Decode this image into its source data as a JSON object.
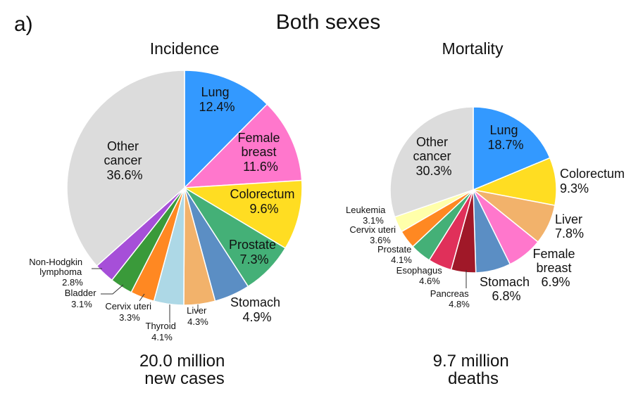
{
  "panel_label": "a)",
  "title": "Both sexes",
  "chart_data": [
    {
      "type": "pie",
      "title": "Incidence",
      "total_line1": "20.0 million",
      "total_line2": "new cases",
      "start": "12 o'clock",
      "direction": "clockwise",
      "slices": [
        {
          "label": "Lung",
          "value": 12.4,
          "text": "12.4%",
          "color": "#3399ff"
        },
        {
          "label": "Female breast",
          "value": 11.6,
          "text": "11.6%",
          "color": "#ff77cc"
        },
        {
          "label": "Colorectum",
          "value": 9.6,
          "text": "9.6%",
          "color": "#ffdd22"
        },
        {
          "label": "Prostate",
          "value": 7.3,
          "text": "7.3%",
          "color": "#44b077"
        },
        {
          "label": "Stomach",
          "value": 4.9,
          "text": "4.9%",
          "color": "#5b8ec4"
        },
        {
          "label": "Liver",
          "value": 4.3,
          "text": "4.3%",
          "color": "#f2b26b"
        },
        {
          "label": "Thyroid",
          "value": 4.1,
          "text": "4.1%",
          "color": "#add8e6"
        },
        {
          "label": "Cervix uteri",
          "value": 3.3,
          "text": "3.3%",
          "color": "#ff8822"
        },
        {
          "label": "Bladder",
          "value": 3.1,
          "text": "3.1%",
          "color": "#3a9a3a"
        },
        {
          "label": "Non-Hodgkin lymphoma",
          "value": 2.8,
          "text": "2.8%",
          "color": "#a64fd8"
        },
        {
          "label": "Other cancer",
          "value": 36.6,
          "text": "36.6%",
          "color": "#dcdcdc"
        }
      ]
    },
    {
      "type": "pie",
      "title": "Mortality",
      "total_line1": "9.7 million",
      "total_line2": "deaths",
      "start": "12 o'clock",
      "direction": "clockwise",
      "slices": [
        {
          "label": "Lung",
          "value": 18.7,
          "text": "18.7%",
          "color": "#3399ff"
        },
        {
          "label": "Colorectum",
          "value": 9.3,
          "text": "9.3%",
          "color": "#ffdd22"
        },
        {
          "label": "Liver",
          "value": 7.8,
          "text": "7.8%",
          "color": "#f2b26b"
        },
        {
          "label": "Female breast",
          "value": 6.9,
          "text": "6.9%",
          "color": "#ff77cc"
        },
        {
          "label": "Stomach",
          "value": 6.8,
          "text": "6.8%",
          "color": "#5b8ec4"
        },
        {
          "label": "Pancreas",
          "value": 4.8,
          "text": "4.8%",
          "color": "#a01828"
        },
        {
          "label": "Esophagus",
          "value": 4.6,
          "text": "4.6%",
          "color": "#e0305a"
        },
        {
          "label": "Prostate",
          "value": 4.1,
          "text": "4.1%",
          "color": "#44b077"
        },
        {
          "label": "Cervix uteri",
          "value": 3.6,
          "text": "3.6%",
          "color": "#ff8822"
        },
        {
          "label": "Leukemia",
          "value": 3.1,
          "text": "3.1%",
          "color": "#ffffaa"
        },
        {
          "label": "Other cancer",
          "value": 30.3,
          "text": "30.3%",
          "color": "#dcdcdc"
        }
      ]
    }
  ]
}
